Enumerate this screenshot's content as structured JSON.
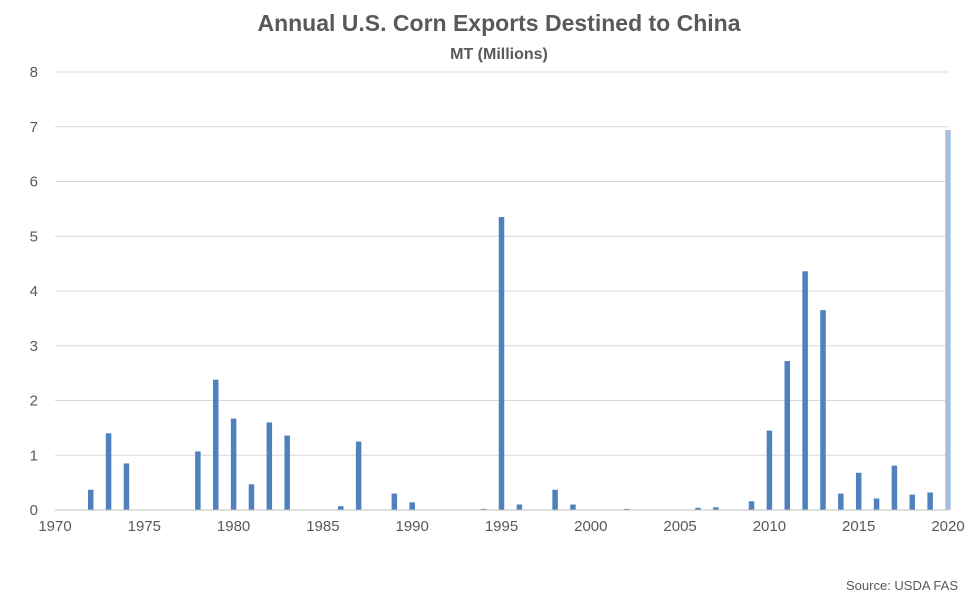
{
  "chart_data": {
    "type": "bar",
    "title": "Annual U.S. Corn Exports Destined to China",
    "subtitle": "MT (Millions)",
    "source": "Source: USDA FAS",
    "xlabel": "",
    "ylabel": "",
    "xlim": [
      1970,
      2020
    ],
    "ylim": [
      0,
      8
    ],
    "yticks": [
      "0",
      "1",
      "2",
      "3",
      "4",
      "5",
      "6",
      "7",
      "8"
    ],
    "xticks": [
      "1970",
      "1975",
      "1980",
      "1985",
      "1990",
      "1995",
      "2000",
      "2005",
      "2010",
      "2015",
      "2020"
    ],
    "grid": true,
    "colors": {
      "bar": "#4f81bd",
      "highlight": "#a6c0db"
    },
    "highlight_year": 2020,
    "x": [
      1972,
      1973,
      1974,
      1978,
      1979,
      1980,
      1981,
      1982,
      1983,
      1986,
      1987,
      1989,
      1990,
      1994,
      1995,
      1996,
      1998,
      1999,
      2002,
      2006,
      2007,
      2009,
      2010,
      2011,
      2012,
      2013,
      2014,
      2015,
      2016,
      2017,
      2018,
      2019,
      2020
    ],
    "values": [
      0.37,
      1.4,
      0.85,
      1.07,
      2.38,
      1.67,
      0.47,
      1.6,
      1.36,
      0.07,
      1.25,
      0.3,
      0.14,
      0.02,
      5.35,
      0.1,
      0.37,
      0.1,
      0.02,
      0.04,
      0.05,
      0.16,
      1.45,
      2.72,
      4.36,
      3.65,
      0.3,
      0.68,
      0.21,
      0.81,
      0.28,
      0.32,
      6.94
    ]
  }
}
